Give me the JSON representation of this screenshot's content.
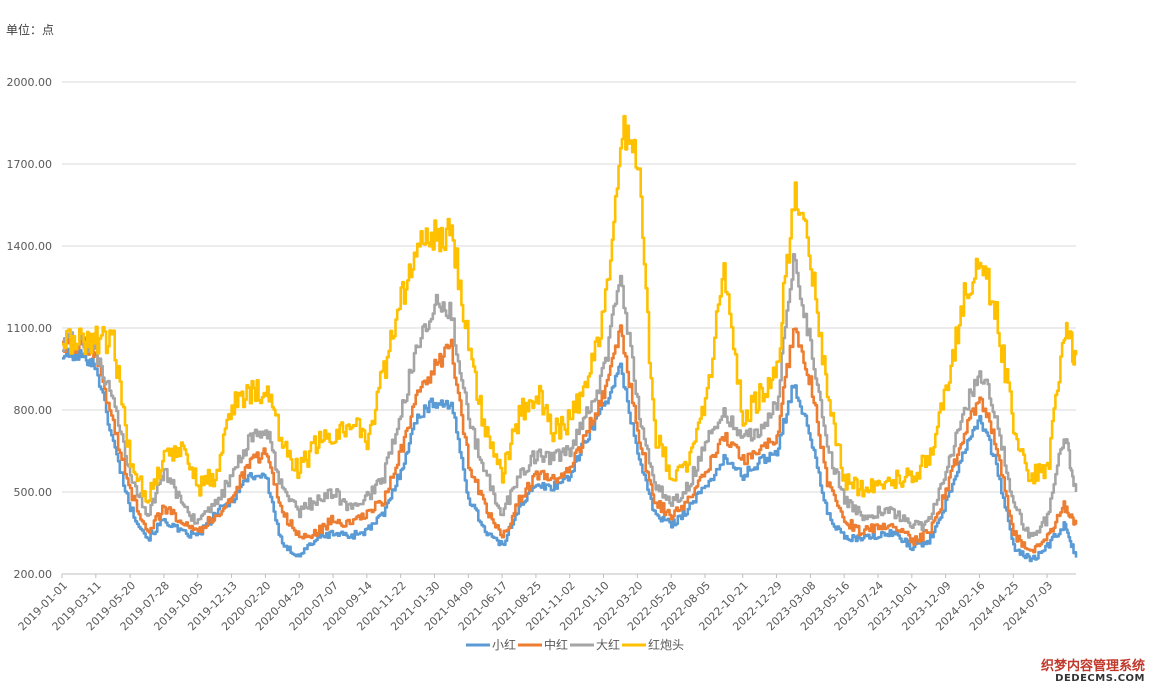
{
  "unit_label": "单位：点",
  "watermark": {
    "line1": "织梦内容管理系统",
    "line2": "DEDECMS.COM"
  },
  "colors": {
    "小红": "#5B9BD5",
    "中红": "#ED7D31",
    "大红": "#A5A5A5",
    "红炮头": "#FFC000",
    "grid": "#d9d9d9",
    "axis": "#bfbfbf"
  },
  "chart_data": {
    "type": "line",
    "title": "",
    "xlabel": "",
    "ylabel": "",
    "ylim": [
      200,
      2000
    ],
    "y_ticks": [
      "200.00",
      "500.00",
      "800.00",
      "1100.00",
      "1400.00",
      "1700.00",
      "2000.00"
    ],
    "y_tick_values": [
      200,
      500,
      800,
      1100,
      1400,
      1700,
      2000
    ],
    "grid": true,
    "legend_position": "bottom",
    "x_tick_labels": [
      "2019-01-01",
      "2019-03-11",
      "2019-05-20",
      "2019-07-28",
      "2019-10-05",
      "2019-12-13",
      "2020-02-20",
      "2020-04-29",
      "2020-07-07",
      "2020-09-14",
      "2020-11-22",
      "2021-01-30",
      "2021-04-09",
      "2021-06-17",
      "2021-08-25",
      "2021-11-02",
      "2022-01-10",
      "2022-03-20",
      "2022-05-28",
      "2022-08-05",
      "2022-10-21",
      "2022-12-29",
      "2023-03-08",
      "2023-05-16",
      "2023-07-24",
      "2023-10-01",
      "2023-12-09",
      "2024-02-16",
      "2024-04-25",
      "2024-07-03"
    ],
    "x": [
      "2019-01-01",
      "2019-02-14",
      "2019-03-11",
      "2019-04-15",
      "2019-05-20",
      "2019-06-24",
      "2019-07-28",
      "2019-09-01",
      "2019-10-05",
      "2019-11-09",
      "2019-12-13",
      "2020-01-16",
      "2020-02-20",
      "2020-03-25",
      "2020-04-29",
      "2020-06-02",
      "2020-07-07",
      "2020-08-10",
      "2020-09-14",
      "2020-10-18",
      "2020-11-22",
      "2020-12-26",
      "2021-01-30",
      "2021-03-05",
      "2021-04-09",
      "2021-05-13",
      "2021-06-17",
      "2021-07-21",
      "2021-08-25",
      "2021-09-28",
      "2021-11-02",
      "2021-12-06",
      "2022-01-10",
      "2022-02-13",
      "2022-03-20",
      "2022-04-23",
      "2022-05-28",
      "2022-07-01",
      "2022-08-05",
      "2022-09-12",
      "2022-10-21",
      "2022-11-24",
      "2022-12-29",
      "2023-02-01",
      "2023-03-08",
      "2023-04-11",
      "2023-05-16",
      "2023-06-19",
      "2023-07-24",
      "2023-08-27",
      "2023-10-01",
      "2023-11-04",
      "2023-12-09",
      "2024-01-12",
      "2024-02-16",
      "2024-03-21",
      "2024-04-25",
      "2024-05-29",
      "2024-07-03",
      "2024-08-06",
      "2024-08-31"
    ],
    "series": [
      {
        "name": "小红",
        "values": [
          1000,
          1000,
          960,
          680,
          440,
          330,
          400,
          350,
          340,
          420,
          470,
          560,
          560,
          300,
          270,
          330,
          350,
          340,
          360,
          420,
          580,
          780,
          830,
          820,
          480,
          360,
          300,
          450,
          520,
          520,
          560,
          700,
          820,
          950,
          650,
          420,
          380,
          440,
          520,
          620,
          560,
          610,
          650,
          900,
          700,
          420,
          330,
          330,
          340,
          350,
          300,
          320,
          460,
          640,
          780,
          600,
          300,
          250,
          300,
          380,
          260
        ]
      },
      {
        "name": "中红",
        "values": [
          1040,
          1040,
          1000,
          750,
          500,
          360,
          440,
          400,
          360,
          410,
          480,
          600,
          650,
          430,
          330,
          350,
          400,
          380,
          420,
          470,
          650,
          850,
          960,
          1030,
          610,
          440,
          330,
          470,
          560,
          550,
          580,
          720,
          860,
          1100,
          720,
          470,
          410,
          470,
          570,
          700,
          620,
          650,
          700,
          1100,
          900,
          540,
          400,
          350,
          380,
          380,
          320,
          350,
          500,
          700,
          850,
          680,
          350,
          280,
          330,
          450,
          380
        ]
      },
      {
        "name": "大红",
        "values": [
          1050,
          1050,
          1010,
          820,
          560,
          420,
          570,
          470,
          380,
          450,
          560,
          680,
          740,
          500,
          430,
          470,
          500,
          440,
          480,
          560,
          780,
          1050,
          1190,
          1150,
          760,
          570,
          420,
          560,
          640,
          620,
          650,
          780,
          940,
          1300,
          820,
          530,
          460,
          520,
          680,
          800,
          700,
          720,
          820,
          1350,
          1050,
          660,
          480,
          410,
          430,
          420,
          370,
          390,
          560,
          780,
          950,
          780,
          450,
          330,
          400,
          720,
          500
        ]
      },
      {
        "name": "红炮头",
        "values": [
          1050,
          1050,
          1060,
          1040,
          620,
          480,
          620,
          680,
          520,
          560,
          820,
          860,
          880,
          680,
          580,
          680,
          700,
          760,
          700,
          940,
          1200,
          1400,
          1430,
          1470,
          1050,
          720,
          560,
          780,
          870,
          720,
          760,
          890,
          1130,
          1820,
          1710,
          720,
          560,
          590,
          840,
          1280,
          760,
          850,
          950,
          1600,
          1350,
          880,
          540,
          520,
          530,
          550,
          560,
          620,
          870,
          1200,
          1360,
          1150,
          740,
          560,
          570,
          1100,
          1000
        ]
      }
    ]
  }
}
